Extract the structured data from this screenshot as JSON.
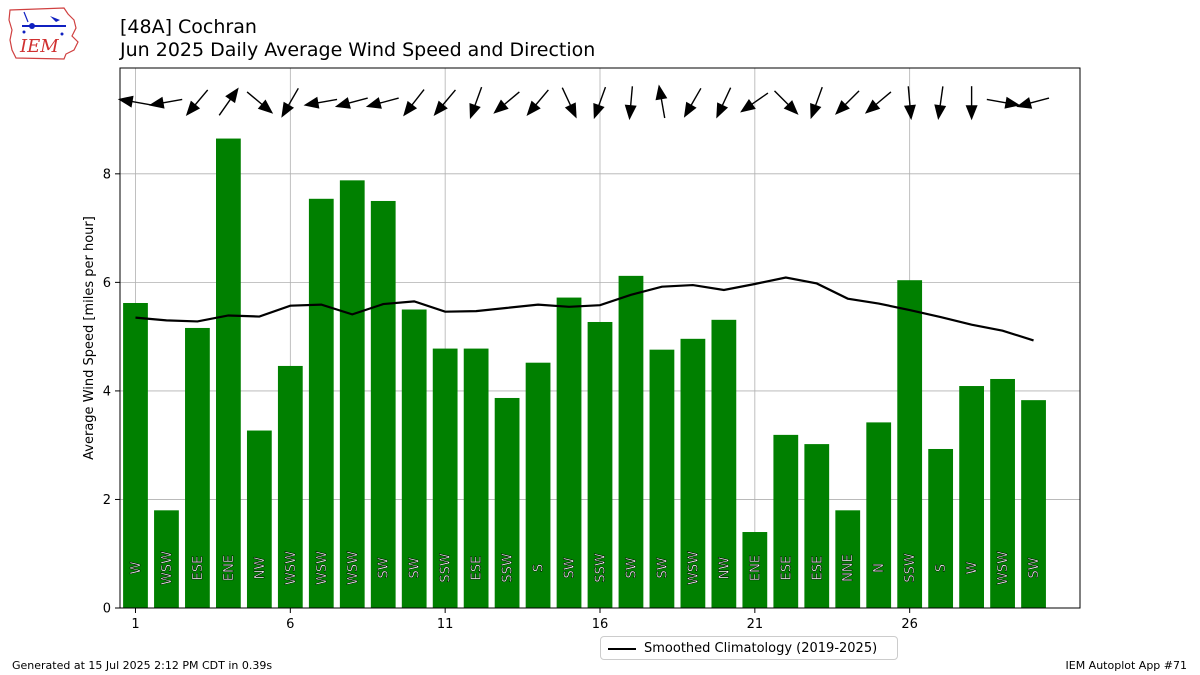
{
  "header": {
    "title": "[48A] Cochran",
    "subtitle": "Jun 2025 Daily Average Wind Speed and Direction"
  },
  "logo": {
    "text": "IEM",
    "icon": "iowa-state-outline-icon"
  },
  "footer": {
    "generated": "Generated at 15 Jul 2025 2:12 PM CDT in 0.39s",
    "app": "IEM Autoplot App #71"
  },
  "legend": {
    "label": "Smoothed Climatology (2019-2025)"
  },
  "colors": {
    "bars": "#008000",
    "climatology": "#000000",
    "grid": "#b0b0b0",
    "arrows": "#000000"
  },
  "chart_data": {
    "type": "bar",
    "title": "[48A] Cochran",
    "subtitle": "Jun 2025 Daily Average Wind Speed and Direction",
    "xlabel": "",
    "ylabel": "Average Wind Speed [miles per hour]",
    "x": [
      1,
      2,
      3,
      4,
      5,
      6,
      7,
      8,
      9,
      10,
      11,
      12,
      13,
      14,
      15,
      16,
      17,
      18,
      19,
      20,
      21,
      22,
      23,
      24,
      25,
      26,
      27,
      28,
      29,
      30
    ],
    "xticks": [
      1,
      6,
      11,
      16,
      21,
      26
    ],
    "yticks": [
      0,
      2,
      4,
      6,
      8
    ],
    "xlim": [
      0.5,
      31.5
    ],
    "ylim": [
      0,
      9.95
    ],
    "grid": true,
    "legend_position": "bottom-center",
    "series": [
      {
        "type": "bar",
        "values": [
          5.62,
          1.8,
          5.16,
          8.65,
          3.27,
          4.46,
          7.54,
          7.88,
          7.5,
          5.5,
          4.78,
          4.78,
          3.87,
          4.52,
          5.72,
          5.27,
          6.12,
          4.76,
          4.96,
          5.31,
          1.4,
          3.19,
          3.02,
          1.8,
          3.42,
          6.04,
          2.93,
          4.09,
          4.22,
          3.83
        ],
        "labels": [
          "W",
          "WSW",
          "ESE",
          "ENE",
          "NW",
          "WSW",
          "WSW",
          "WSW",
          "SW",
          "SW",
          "SSW",
          "ESE",
          "SSW",
          "S",
          "SW",
          "SSW",
          "SW",
          "SW",
          "WSW",
          "NW",
          "ENE",
          "ESE",
          "ESE",
          "NNE",
          "N",
          "SSW",
          "S",
          "W",
          "WSW",
          "SW"
        ]
      },
      {
        "name": "Smoothed Climatology (2019-2025)",
        "type": "line",
        "values": [
          5.35,
          5.3,
          5.28,
          5.39,
          5.37,
          5.57,
          5.59,
          5.41,
          5.6,
          5.65,
          5.46,
          5.47,
          5.53,
          5.59,
          5.55,
          5.58,
          5.77,
          5.92,
          5.95,
          5.86,
          5.97,
          6.09,
          5.98,
          5.7,
          5.61,
          5.49,
          5.36,
          5.22,
          5.11,
          4.93
        ]
      }
    ],
    "wind_direction_deg": [
      -80,
      -100,
      -140,
      35,
      130,
      210,
      -100,
      -105,
      -105,
      218,
      -140,
      -160,
      230,
      -140,
      155,
      200,
      -175,
      -10,
      210,
      205,
      -125,
      135,
      -160,
      -135,
      -130,
      -185,
      188,
      -180,
      -260,
      -105
    ]
  }
}
